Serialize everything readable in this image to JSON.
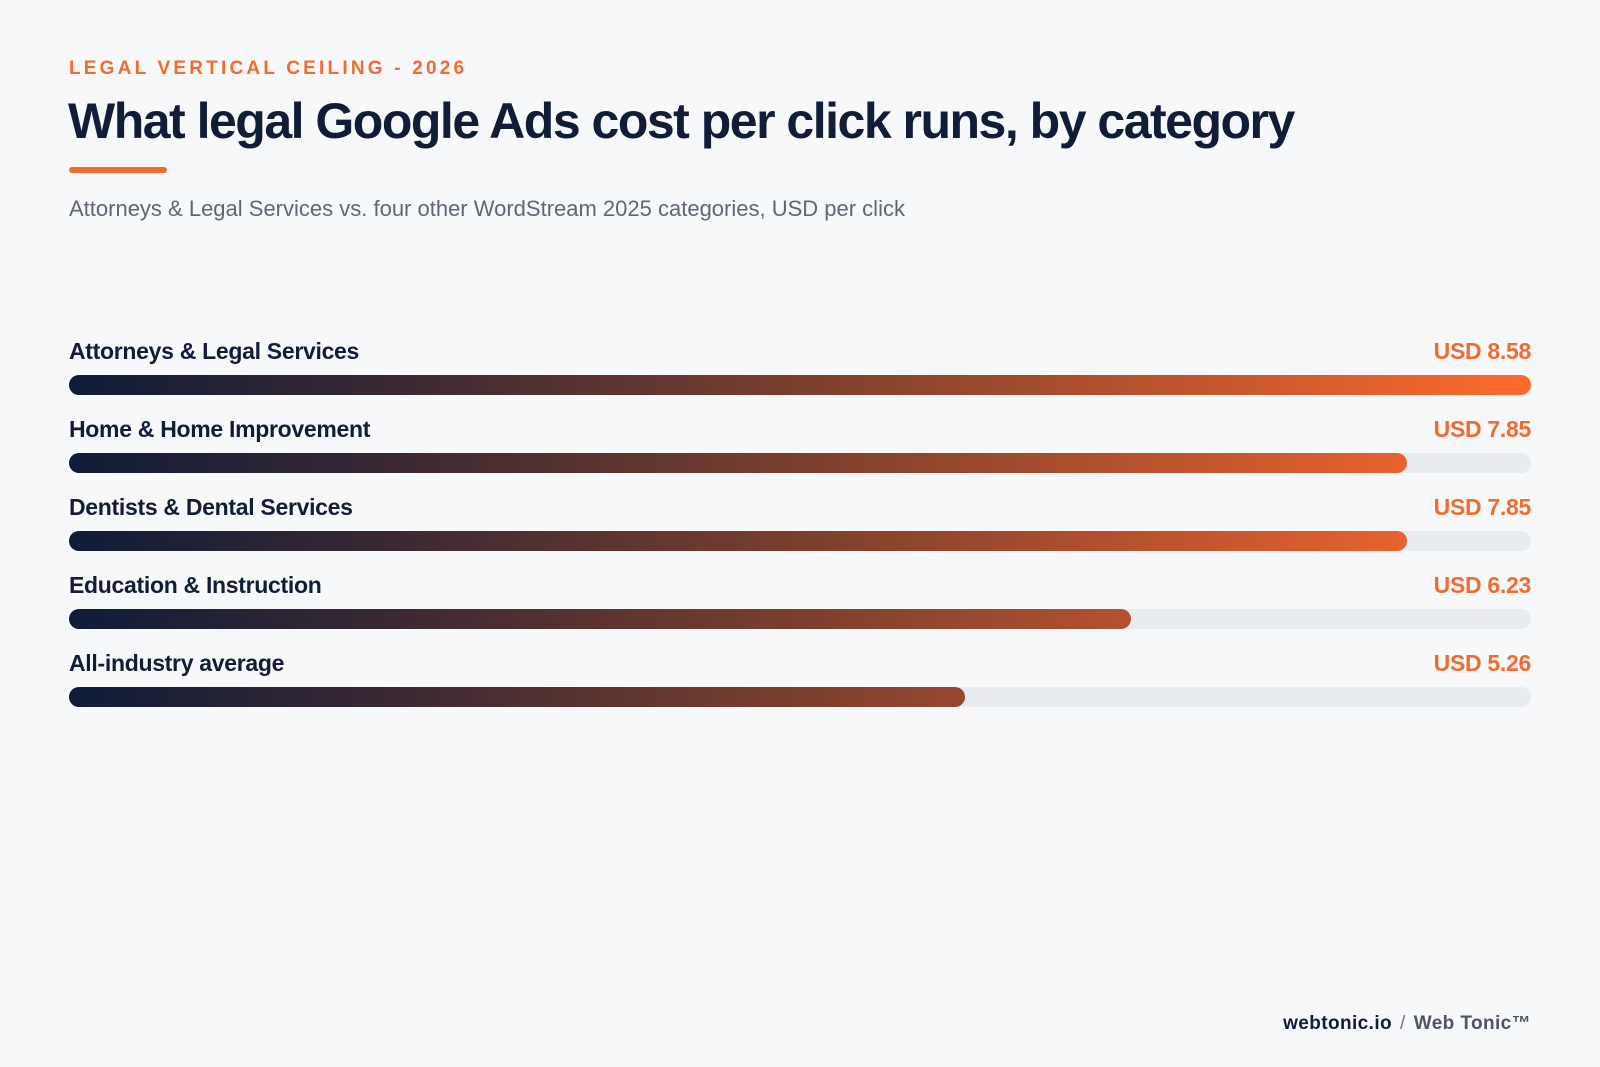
{
  "header": {
    "eyebrow": "LEGAL VERTICAL CEILING - 2026",
    "title": "What legal Google Ads cost per click runs, by category",
    "subtitle": "Attorneys & Legal Services vs. four other WordStream 2025 categories, USD per click"
  },
  "footer": {
    "domain": "webtonic.io",
    "separator": "/",
    "brand": "Web Tonic™"
  },
  "colors": {
    "accent": "#f26b2f",
    "navy": "#111d36",
    "track": "#e8ebef"
  },
  "chart_data": {
    "type": "bar",
    "orientation": "horizontal",
    "categories": [
      "Attorneys & Legal Services",
      "Home & Home Improvement",
      "Dentists & Dental Services",
      "Education & Instruction",
      "All-industry average"
    ],
    "values": [
      8.58,
      7.85,
      7.85,
      6.23,
      5.26
    ],
    "value_labels": [
      "USD 8.58",
      "USD 7.85",
      "USD 7.85",
      "USD 6.23",
      "USD 5.26"
    ],
    "unit": "USD",
    "xlim": [
      0,
      8.58
    ],
    "title": "What legal Google Ads cost per click runs, by category",
    "xlabel": "",
    "ylabel": "",
    "grid": false,
    "legend": "none"
  }
}
